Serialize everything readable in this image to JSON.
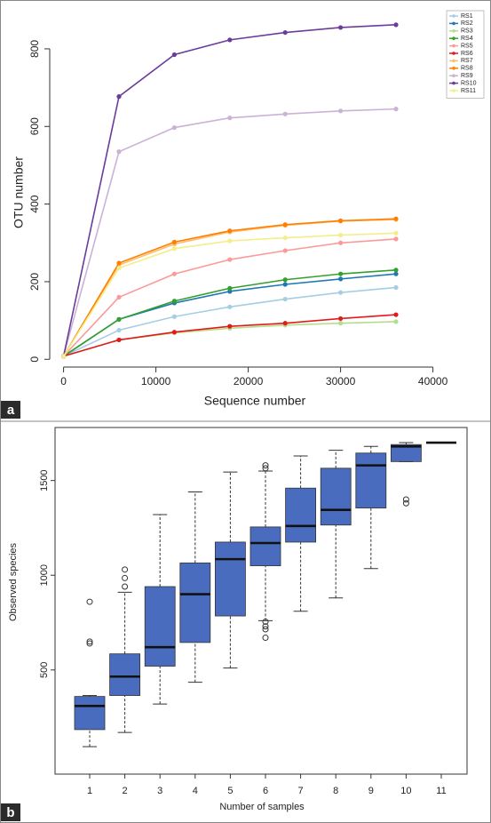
{
  "chart_data": [
    {
      "type": "line",
      "panel_label": "a",
      "xlabel": "Sequence number",
      "ylabel": "OTU number",
      "x": [
        0,
        6000,
        12000,
        18000,
        24000,
        30000,
        36000
      ],
      "xlim": [
        -1500,
        41000
      ],
      "xticks": [
        0,
        10000,
        20000,
        30000,
        40000
      ],
      "ylim": [
        -20,
        880
      ],
      "yticks": [
        0,
        200,
        400,
        600,
        800
      ],
      "legend": "top-right",
      "series": [
        {
          "name": "RS1",
          "color": "#a6cee3",
          "values": [
            8,
            75,
            110,
            135,
            155,
            172,
            185
          ]
        },
        {
          "name": "RS2",
          "color": "#1f78b4",
          "values": [
            8,
            103,
            145,
            175,
            193,
            207,
            220
          ]
        },
        {
          "name": "RS3",
          "color": "#b2df8a",
          "values": [
            8,
            50,
            68,
            80,
            88,
            93,
            97
          ]
        },
        {
          "name": "RS4",
          "color": "#33a02c",
          "values": [
            8,
            103,
            150,
            183,
            205,
            220,
            230
          ]
        },
        {
          "name": "RS5",
          "color": "#fb9a99",
          "values": [
            8,
            160,
            220,
            257,
            280,
            300,
            310
          ]
        },
        {
          "name": "RS6",
          "color": "#e31a1c",
          "values": [
            8,
            50,
            70,
            85,
            93,
            105,
            115
          ]
        },
        {
          "name": "RS7",
          "color": "#fdbf6f",
          "values": [
            8,
            243,
            297,
            328,
            345,
            356,
            360
          ]
        },
        {
          "name": "RS8",
          "color": "#ff7f00",
          "values": [
            8,
            248,
            302,
            331,
            347,
            357,
            362
          ]
        },
        {
          "name": "RS9",
          "color": "#cab2d6",
          "values": [
            8,
            535,
            597,
            622,
            632,
            640,
            645
          ]
        },
        {
          "name": "RS10",
          "color": "#6a3d9a",
          "values": [
            8,
            677,
            785,
            823,
            842,
            855,
            862
          ]
        },
        {
          "name": "RS11",
          "color": "#f3ee8a",
          "values": [
            8,
            235,
            285,
            305,
            313,
            320,
            325
          ]
        }
      ]
    },
    {
      "type": "box",
      "panel_label": "b",
      "xlabel": "Number of samples",
      "ylabel": "Observed species",
      "categories": [
        "1",
        "2",
        "3",
        "4",
        "5",
        "6",
        "7",
        "8",
        "9",
        "10",
        "11"
      ],
      "ylim": [
        -50,
        1780
      ],
      "yticks": [
        500,
        1000,
        1500
      ],
      "color": "#4a6cbf",
      "low": [
        95,
        170,
        320,
        435,
        510,
        760,
        810,
        880,
        1035,
        1600,
        1700
      ],
      "q1": [
        185,
        365,
        520,
        645,
        785,
        1050,
        1175,
        1265,
        1355,
        1600,
        1700
      ],
      "median": [
        310,
        465,
        620,
        900,
        1085,
        1170,
        1260,
        1345,
        1580,
        1680,
        1700
      ],
      "q3": [
        360,
        585,
        940,
        1065,
        1175,
        1255,
        1460,
        1565,
        1645,
        1690,
        1700
      ],
      "high": [
        365,
        910,
        1320,
        1440,
        1545,
        1550,
        1630,
        1660,
        1680,
        1700,
        1700
      ],
      "outliers": [
        [
          860,
          650,
          640
        ],
        [
          1030,
          985,
          940
        ],
        [],
        [],
        [],
        [
          1580,
          1565,
          755,
          730,
          715,
          670
        ],
        [],
        [],
        [],
        [
          1400,
          1380
        ],
        []
      ]
    }
  ]
}
